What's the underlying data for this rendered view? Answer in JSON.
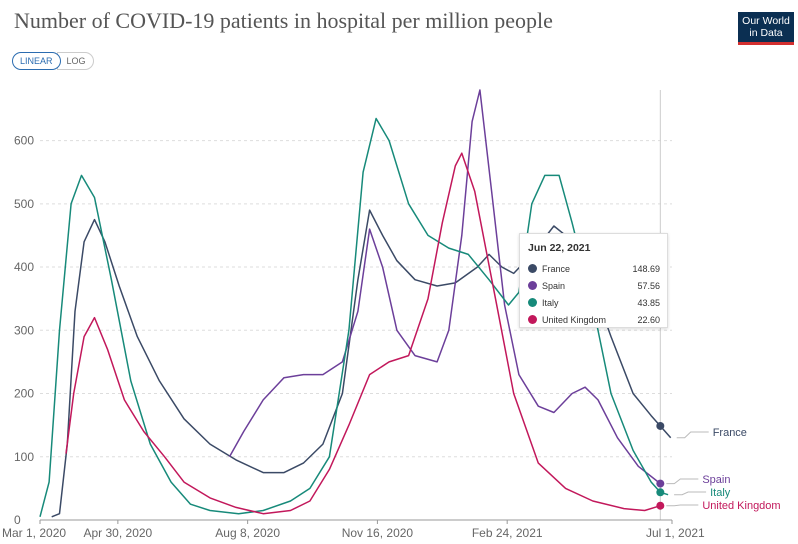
{
  "header": {
    "title": "Number of COVID-19 patients in hospital per million people",
    "logo_line1": "Our World",
    "logo_line2": "in Data"
  },
  "controls": {
    "linear_label": "LINEAR",
    "log_label": "LOG"
  },
  "tooltip": {
    "date": "Jun 22, 2021",
    "rows": [
      {
        "name": "France",
        "value": "148.69",
        "color": "#3b4a66"
      },
      {
        "name": "Spain",
        "value": "57.56",
        "color": "#6c3f9a"
      },
      {
        "name": "Italy",
        "value": "43.85",
        "color": "#178a7a"
      },
      {
        "name": "United Kingdom",
        "value": "22.60",
        "color": "#c2185b"
      }
    ]
  },
  "chart_data": {
    "type": "line",
    "title": "Number of COVID-19 patients in hospital per million people",
    "ylim": [
      0,
      680
    ],
    "yticks": [
      0,
      100,
      200,
      300,
      400,
      500,
      600
    ],
    "xlim": [
      "2020-03-01",
      "2021-07-01"
    ],
    "xticks": [
      "Mar 1, 2020",
      "Apr 30, 2020",
      "Aug 8, 2020",
      "Nov 16, 2020",
      "Feb 24, 2021",
      "Jul 1, 2021"
    ],
    "grid": true,
    "legend": "right",
    "series": [
      {
        "name": "France",
        "color": "#3b4a66",
        "end_value": 148.69,
        "points": [
          [
            "2020-03-10",
            5
          ],
          [
            "2020-03-16",
            10
          ],
          [
            "2020-03-22",
            120
          ],
          [
            "2020-03-28",
            330
          ],
          [
            "2020-04-04",
            440
          ],
          [
            "2020-04-12",
            475
          ],
          [
            "2020-04-20",
            440
          ],
          [
            "2020-05-01",
            370
          ],
          [
            "2020-05-15",
            290
          ],
          [
            "2020-06-01",
            220
          ],
          [
            "2020-06-20",
            160
          ],
          [
            "2020-07-10",
            120
          ],
          [
            "2020-07-30",
            95
          ],
          [
            "2020-08-20",
            75
          ],
          [
            "2020-09-05",
            75
          ],
          [
            "2020-09-20",
            90
          ],
          [
            "2020-10-05",
            120
          ],
          [
            "2020-10-20",
            200
          ],
          [
            "2020-11-01",
            380
          ],
          [
            "2020-11-10",
            490
          ],
          [
            "2020-11-20",
            450
          ],
          [
            "2020-12-01",
            410
          ],
          [
            "2020-12-15",
            380
          ],
          [
            "2021-01-01",
            370
          ],
          [
            "2021-01-15",
            375
          ],
          [
            "2021-02-01",
            400
          ],
          [
            "2021-02-10",
            420
          ],
          [
            "2021-02-20",
            400
          ],
          [
            "2021-03-01",
            390
          ],
          [
            "2021-03-15",
            420
          ],
          [
            "2021-04-01",
            465
          ],
          [
            "2021-04-10",
            450
          ],
          [
            "2021-04-20",
            420
          ],
          [
            "2021-05-01",
            370
          ],
          [
            "2021-05-15",
            290
          ],
          [
            "2021-06-01",
            200
          ],
          [
            "2021-06-15",
            165
          ],
          [
            "2021-06-22",
            148.69
          ],
          [
            "2021-06-30",
            130
          ]
        ]
      },
      {
        "name": "Spain",
        "color": "#6c3f9a",
        "end_value": 57.56,
        "points": [
          [
            "2020-07-25",
            100
          ],
          [
            "2020-08-05",
            140
          ],
          [
            "2020-08-20",
            190
          ],
          [
            "2020-09-05",
            225
          ],
          [
            "2020-09-20",
            230
          ],
          [
            "2020-10-05",
            230
          ],
          [
            "2020-10-20",
            250
          ],
          [
            "2020-11-01",
            330
          ],
          [
            "2020-11-10",
            460
          ],
          [
            "2020-11-20",
            400
          ],
          [
            "2020-12-01",
            300
          ],
          [
            "2020-12-15",
            260
          ],
          [
            "2021-01-01",
            250
          ],
          [
            "2021-01-10",
            300
          ],
          [
            "2021-01-20",
            450
          ],
          [
            "2021-01-28",
            630
          ],
          [
            "2021-02-03",
            680
          ],
          [
            "2021-02-12",
            520
          ],
          [
            "2021-02-22",
            340
          ],
          [
            "2021-03-05",
            230
          ],
          [
            "2021-03-20",
            180
          ],
          [
            "2021-04-01",
            170
          ],
          [
            "2021-04-15",
            200
          ],
          [
            "2021-04-25",
            210
          ],
          [
            "2021-05-05",
            190
          ],
          [
            "2021-05-20",
            130
          ],
          [
            "2021-06-05",
            85
          ],
          [
            "2021-06-22",
            57.56
          ]
        ]
      },
      {
        "name": "Italy",
        "color": "#178a7a",
        "end_value": 43.85,
        "points": [
          [
            "2020-03-01",
            5
          ],
          [
            "2020-03-08",
            60
          ],
          [
            "2020-03-16",
            300
          ],
          [
            "2020-03-25",
            500
          ],
          [
            "2020-04-02",
            545
          ],
          [
            "2020-04-12",
            510
          ],
          [
            "2020-04-25",
            380
          ],
          [
            "2020-05-10",
            220
          ],
          [
            "2020-05-25",
            120
          ],
          [
            "2020-06-10",
            60
          ],
          [
            "2020-06-25",
            25
          ],
          [
            "2020-07-10",
            15
          ],
          [
            "2020-08-01",
            10
          ],
          [
            "2020-08-20",
            15
          ],
          [
            "2020-09-10",
            30
          ],
          [
            "2020-09-25",
            50
          ],
          [
            "2020-10-10",
            100
          ],
          [
            "2020-10-25",
            300
          ],
          [
            "2020-11-05",
            550
          ],
          [
            "2020-11-15",
            635
          ],
          [
            "2020-11-25",
            600
          ],
          [
            "2020-12-10",
            500
          ],
          [
            "2020-12-25",
            450
          ],
          [
            "2021-01-10",
            430
          ],
          [
            "2021-01-25",
            420
          ],
          [
            "2021-02-10",
            380
          ],
          [
            "2021-02-25",
            340
          ],
          [
            "2021-03-05",
            360
          ],
          [
            "2021-03-15",
            500
          ],
          [
            "2021-03-25",
            545
          ],
          [
            "2021-04-05",
            545
          ],
          [
            "2021-04-15",
            470
          ],
          [
            "2021-05-01",
            340
          ],
          [
            "2021-05-15",
            200
          ],
          [
            "2021-06-01",
            110
          ],
          [
            "2021-06-15",
            60
          ],
          [
            "2021-06-22",
            43.85
          ],
          [
            "2021-06-28",
            40
          ]
        ]
      },
      {
        "name": "United Kingdom",
        "color": "#c2185b",
        "end_value": 22.6,
        "points": [
          [
            "2020-03-21",
            105
          ],
          [
            "2020-03-27",
            200
          ],
          [
            "2020-04-04",
            290
          ],
          [
            "2020-04-12",
            320
          ],
          [
            "2020-04-22",
            270
          ],
          [
            "2020-05-05",
            190
          ],
          [
            "2020-05-20",
            140
          ],
          [
            "2020-06-05",
            100
          ],
          [
            "2020-06-20",
            60
          ],
          [
            "2020-07-10",
            35
          ],
          [
            "2020-07-30",
            20
          ],
          [
            "2020-08-20",
            10
          ],
          [
            "2020-09-10",
            15
          ],
          [
            "2020-09-25",
            30
          ],
          [
            "2020-10-10",
            80
          ],
          [
            "2020-10-25",
            150
          ],
          [
            "2020-11-10",
            230
          ],
          [
            "2020-11-25",
            250
          ],
          [
            "2020-12-10",
            260
          ],
          [
            "2020-12-25",
            350
          ],
          [
            "2021-01-05",
            470
          ],
          [
            "2021-01-15",
            560
          ],
          [
            "2021-01-20",
            580
          ],
          [
            "2021-01-30",
            520
          ],
          [
            "2021-02-15",
            350
          ],
          [
            "2021-03-01",
            200
          ],
          [
            "2021-03-20",
            90
          ],
          [
            "2021-04-10",
            50
          ],
          [
            "2021-05-01",
            30
          ],
          [
            "2021-05-25",
            18
          ],
          [
            "2021-06-10",
            15
          ],
          [
            "2021-06-22",
            22.6
          ]
        ]
      }
    ]
  }
}
